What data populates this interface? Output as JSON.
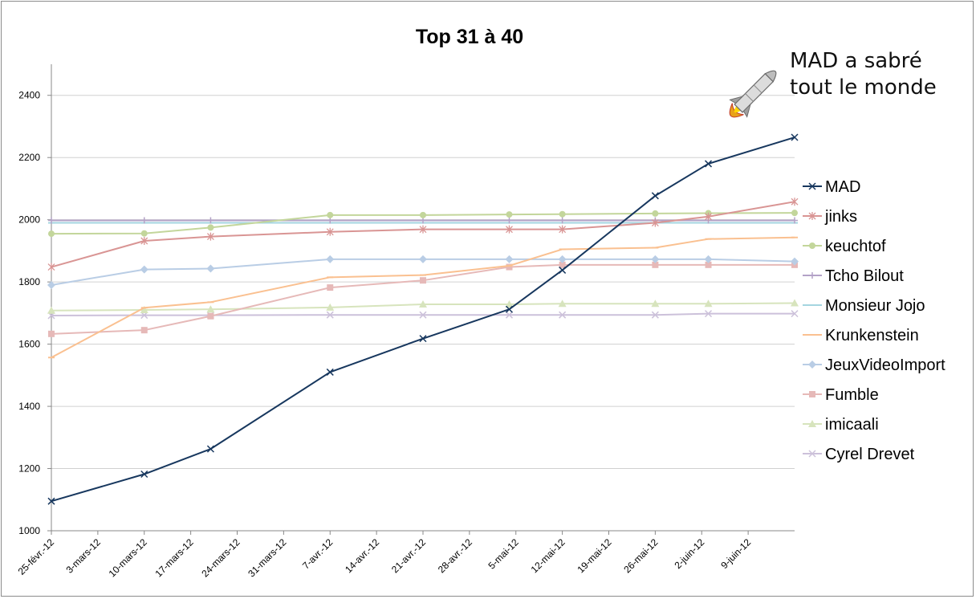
{
  "chart_data": {
    "type": "line",
    "title": "Top 31 à 40",
    "xlabel": "",
    "ylabel": "",
    "ylim": [
      1000,
      2500
    ],
    "yticks": [
      1000,
      1200,
      1400,
      1600,
      1800,
      2000,
      2200,
      2400
    ],
    "x_tick_labels": [
      "25-févr.-12",
      "3-mars-12",
      "10-mars-12",
      "17-mars-12",
      "24-mars-12",
      "31-mars-12",
      "7-avr.-12",
      "14-avr.-12",
      "21-avr.-12",
      "28-avr.-12",
      "5-mai-12",
      "12-mai-12",
      "19-mai-12",
      "26-mai-12",
      "2-juin-12",
      "9-juin-12"
    ],
    "x_range": [
      "2012-02-25",
      "2012-06-16"
    ],
    "x": [
      "2012-02-25",
      "2012-03-10",
      "2012-03-20",
      "2012-04-07",
      "2012-04-21",
      "2012-05-04",
      "2012-05-12",
      "2012-05-26",
      "2012-06-03",
      "2012-06-16"
    ],
    "grid": "horizontal",
    "legend_position": "right",
    "annotation": "MAD a sabré tout le monde",
    "series": [
      {
        "name": "MAD",
        "color": "#17375e",
        "marker": "x",
        "values": [
          1095,
          1182,
          1263,
          1510,
          1618,
          1712,
          1838,
          2077,
          2180,
          2265
        ]
      },
      {
        "name": "jinks",
        "color": "#d99594",
        "marker": "star",
        "values": [
          1848,
          1932,
          1946,
          1961,
          1969,
          1969,
          1969,
          1990,
          2010,
          2058
        ]
      },
      {
        "name": "keuchtof",
        "color": "#c3d69b",
        "marker": "circle",
        "values": [
          1955,
          1956,
          1975,
          2015,
          2015,
          2017,
          2018,
          2020,
          2021,
          2022
        ]
      },
      {
        "name": "Tcho Bilout",
        "color": "#b3a2c7",
        "marker": "plus",
        "values": [
          1998,
          1998,
          1998,
          1998,
          1998,
          1998,
          1998,
          1998,
          1998,
          1998
        ]
      },
      {
        "name": "Monsieur Jojo",
        "color": "#a5d5e0",
        "marker": "dash",
        "values": [
          1990,
          1990,
          1990,
          1990,
          1990,
          1990,
          1990,
          1990,
          1990,
          1990
        ]
      },
      {
        "name": "Krunkenstein",
        "color": "#fac090",
        "marker": "dash",
        "values": [
          1557,
          1717,
          1735,
          1815,
          1822,
          1852,
          1905,
          1910,
          1938,
          1943
        ]
      },
      {
        "name": "JeuxVideoImport",
        "color": "#b9cde5",
        "marker": "diamond",
        "values": [
          1790,
          1840,
          1843,
          1873,
          1873,
          1873,
          1873,
          1873,
          1873,
          1866
        ]
      },
      {
        "name": "Fumble",
        "color": "#e6b9b8",
        "marker": "square",
        "values": [
          1633,
          1645,
          1690,
          1782,
          1805,
          1848,
          1855,
          1855,
          1855,
          1855
        ]
      },
      {
        "name": "imicaali",
        "color": "#d7e4bd",
        "marker": "triangle",
        "values": [
          1708,
          1710,
          1712,
          1718,
          1728,
          1728,
          1730,
          1730,
          1730,
          1732
        ]
      },
      {
        "name": "Cyrel Drevet",
        "color": "#ccc1da",
        "marker": "x",
        "values": [
          1692,
          1693,
          1693,
          1694,
          1694,
          1694,
          1694,
          1694,
          1698,
          1698
        ]
      }
    ]
  }
}
